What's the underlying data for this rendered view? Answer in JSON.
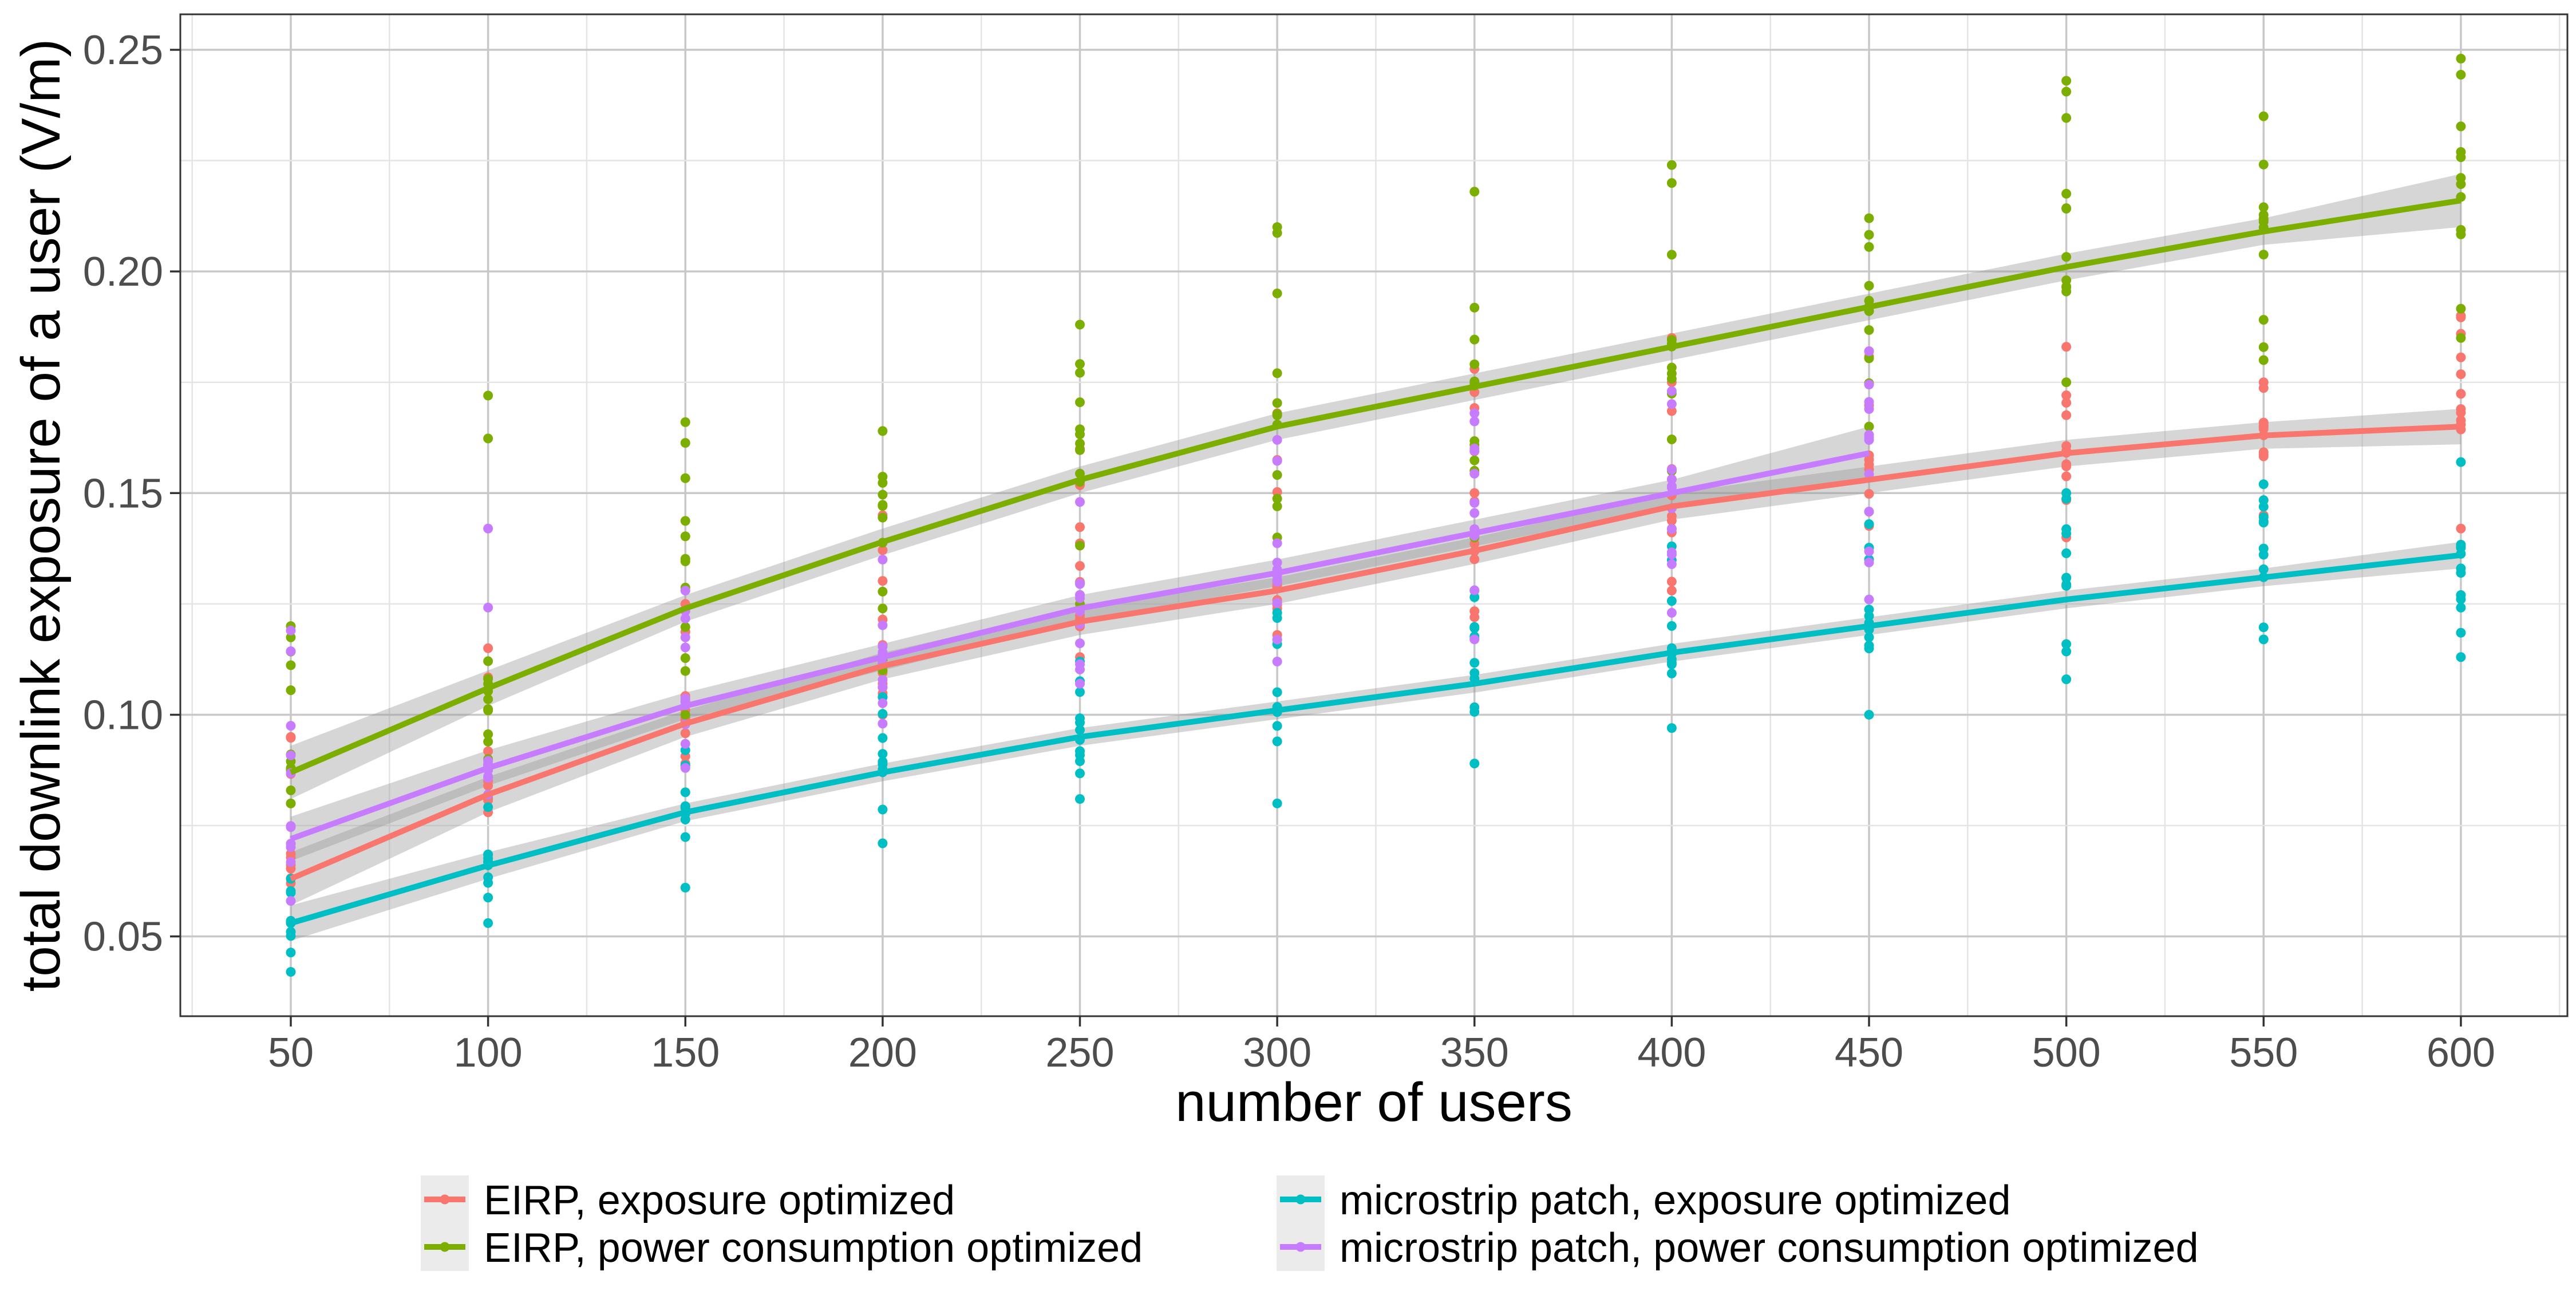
{
  "chart_data": {
    "type": "scatter",
    "title": "",
    "xlabel": "number of users",
    "ylabel": "total downlink exposure of a user (V/m)",
    "xlim": [
      22,
      627
    ],
    "ylim": [
      0.032,
      0.258
    ],
    "x_ticks": [
      50,
      100,
      150,
      200,
      250,
      300,
      350,
      400,
      450,
      500,
      550,
      600
    ],
    "y_ticks": [
      0.05,
      0.1,
      0.15,
      0.2,
      0.25
    ],
    "x_tick_labels": [
      "50",
      "100",
      "150",
      "200",
      "250",
      "300",
      "350",
      "400",
      "450",
      "500",
      "550",
      "600"
    ],
    "y_tick_labels": [
      "0.05",
      "0.10",
      "0.15",
      "0.20",
      "0.25"
    ],
    "grid": true,
    "legend_position": "bottom",
    "series": [
      {
        "name": "EIRP, exposure optimized",
        "color": "#F8766D",
        "x": [
          50,
          100,
          150,
          200,
          250,
          300,
          350,
          400,
          450,
          500,
          550,
          600
        ],
        "fit": [
          0.063,
          0.082,
          0.098,
          0.111,
          0.121,
          0.128,
          0.137,
          0.147,
          0.153,
          0.159,
          0.163,
          0.165
        ],
        "ci_half_width": [
          0.006,
          0.004,
          0.003,
          0.003,
          0.003,
          0.003,
          0.003,
          0.003,
          0.003,
          0.003,
          0.003,
          0.004
        ],
        "point_range": [
          [
            0.062,
            0.095
          ],
          [
            0.078,
            0.115
          ],
          [
            0.089,
            0.125
          ],
          [
            0.1,
            0.145
          ],
          [
            0.113,
            0.16
          ],
          [
            0.118,
            0.168
          ],
          [
            0.122,
            0.178
          ],
          [
            0.128,
            0.185
          ],
          [
            0.135,
            0.182
          ],
          [
            0.14,
            0.183
          ],
          [
            0.145,
            0.175
          ],
          [
            0.142,
            0.19
          ]
        ]
      },
      {
        "name": "EIRP, power consumption optimized",
        "color": "#7CAE00",
        "x": [
          50,
          100,
          150,
          200,
          250,
          300,
          350,
          400,
          450,
          500,
          550,
          600
        ],
        "fit": [
          0.087,
          0.106,
          0.124,
          0.139,
          0.153,
          0.165,
          0.174,
          0.183,
          0.192,
          0.201,
          0.209,
          0.216
        ],
        "ci_half_width": [
          0.006,
          0.004,
          0.003,
          0.003,
          0.003,
          0.003,
          0.003,
          0.003,
          0.003,
          0.003,
          0.003,
          0.006
        ],
        "point_range": [
          [
            0.08,
            0.12
          ],
          [
            0.09,
            0.172
          ],
          [
            0.1,
            0.166
          ],
          [
            0.11,
            0.164
          ],
          [
            0.125,
            0.188
          ],
          [
            0.14,
            0.21
          ],
          [
            0.14,
            0.218
          ],
          [
            0.155,
            0.224
          ],
          [
            0.165,
            0.212
          ],
          [
            0.175,
            0.243
          ],
          [
            0.18,
            0.235
          ],
          [
            0.185,
            0.248
          ]
        ]
      },
      {
        "name": "microstrip patch, exposure optimized",
        "color": "#00BFC4",
        "x": [
          50,
          100,
          150,
          200,
          250,
          300,
          350,
          400,
          450,
          500,
          550,
          600
        ],
        "fit": [
          0.053,
          0.066,
          0.078,
          0.087,
          0.095,
          0.101,
          0.107,
          0.114,
          0.12,
          0.126,
          0.131,
          0.136
        ],
        "ci_half_width": [
          0.004,
          0.003,
          0.002,
          0.002,
          0.002,
          0.002,
          0.002,
          0.002,
          0.002,
          0.002,
          0.002,
          0.003
        ],
        "point_range": [
          [
            0.042,
            0.063
          ],
          [
            0.053,
            0.082
          ],
          [
            0.061,
            0.092
          ],
          [
            0.071,
            0.104
          ],
          [
            0.081,
            0.112
          ],
          [
            0.08,
            0.123
          ],
          [
            0.089,
            0.128
          ],
          [
            0.097,
            0.138
          ],
          [
            0.1,
            0.143
          ],
          [
            0.108,
            0.15
          ],
          [
            0.117,
            0.152
          ],
          [
            0.113,
            0.157
          ]
        ]
      },
      {
        "name": "microstrip patch, power consumption optimized",
        "color": "#C77CFF",
        "x": [
          50,
          100,
          150,
          200,
          250,
          300,
          350,
          400,
          450
        ],
        "fit": [
          0.072,
          0.088,
          0.102,
          0.113,
          0.124,
          0.132,
          0.141,
          0.15,
          0.159
        ],
        "ci_half_width": [
          0.005,
          0.004,
          0.003,
          0.003,
          0.003,
          0.003,
          0.003,
          0.003,
          0.006
        ],
        "point_range": [
          [
            0.058,
            0.119
          ],
          [
            0.082,
            0.142
          ],
          [
            0.088,
            0.128
          ],
          [
            0.098,
            0.135
          ],
          [
            0.107,
            0.148
          ],
          [
            0.112,
            0.162
          ],
          [
            0.117,
            0.168
          ],
          [
            0.123,
            0.173
          ],
          [
            0.126,
            0.182
          ]
        ]
      }
    ]
  }
}
